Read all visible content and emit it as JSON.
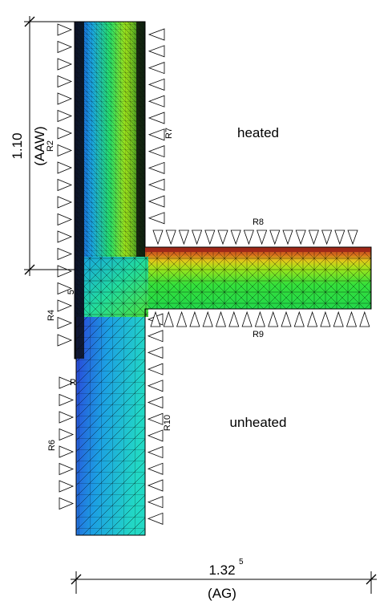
{
  "labels": {
    "heated": "heated",
    "unheated": "unheated"
  },
  "dimensions": {
    "vertical": {
      "value": "1.10",
      "code": "(AAW)"
    },
    "horizontal": {
      "value": "1.32",
      "superscript": "5",
      "code": "(AG)"
    }
  },
  "regions": {
    "r2": "R2",
    "r4": "R4",
    "r5": "5",
    "r_partial": "R",
    "r6": "R6",
    "r7": "R7",
    "r8": "R8",
    "r9": "R9",
    "r10": "R10"
  },
  "colors": {
    "cold": "#1f3fd8",
    "cool": "#1aa0e6",
    "mild": "#19d6b8",
    "warm": "#25e05a",
    "warmer": "#86e01c",
    "hot": "#d8c21a",
    "hottest": "#c0281a",
    "mesh": "#000000"
  }
}
